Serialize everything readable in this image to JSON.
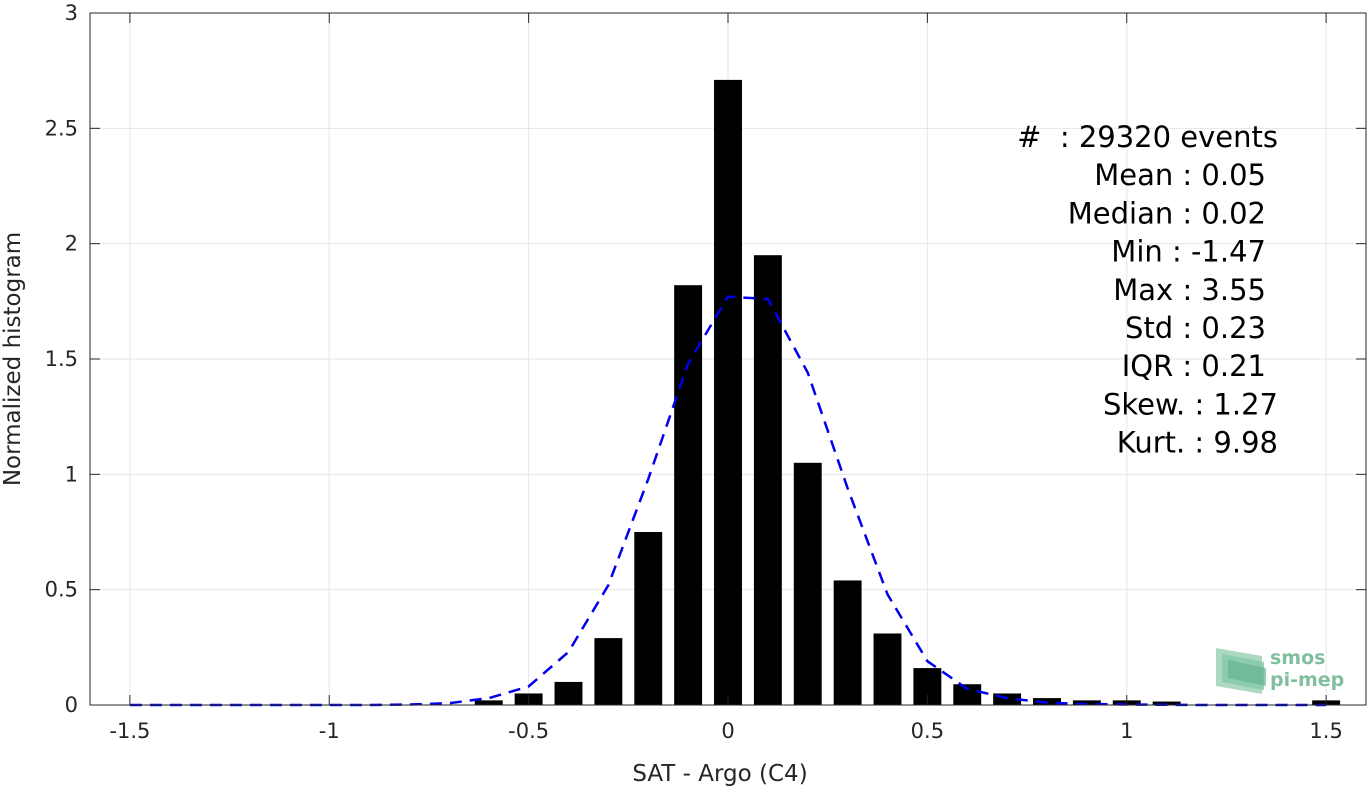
{
  "chart_data": {
    "type": "bar",
    "xlabel": "SAT - Argo (C4)",
    "ylabel": "Normalized histogram",
    "xlim": [
      -1.6,
      1.6
    ],
    "ylim": [
      0,
      3
    ],
    "x_ticks": [
      "-1.5",
      "-1",
      "-0.5",
      "0",
      "0.5",
      "1",
      "1.5"
    ],
    "x_tick_values": [
      -1.5,
      -1,
      -0.5,
      0,
      0.5,
      1,
      1.5
    ],
    "y_ticks": [
      "0",
      "0.5",
      "1",
      "1.5",
      "2",
      "2.5",
      "3"
    ],
    "y_tick_values": [
      0,
      0.5,
      1,
      1.5,
      2,
      2.5,
      3
    ],
    "grid": true,
    "bar_width": 0.07,
    "bars": {
      "x": [
        -0.6,
        -0.5,
        -0.4,
        -0.3,
        -0.2,
        -0.1,
        0.0,
        0.1,
        0.2,
        0.3,
        0.4,
        0.5,
        0.6,
        0.7,
        0.8,
        0.9,
        1.0,
        1.1,
        1.5
      ],
      "values": [
        0.02,
        0.05,
        0.1,
        0.29,
        0.75,
        1.82,
        2.71,
        1.95,
        1.05,
        0.54,
        0.31,
        0.16,
        0.09,
        0.05,
        0.03,
        0.02,
        0.02,
        0.015,
        0.02
      ],
      "color": "#000000"
    },
    "fit_curve": {
      "style": "dashed",
      "color": "#0000ee",
      "x": [
        -1.5,
        -1.4,
        -1.3,
        -1.2,
        -1.1,
        -1.0,
        -0.9,
        -0.8,
        -0.7,
        -0.6,
        -0.5,
        -0.4,
        -0.3,
        -0.2,
        -0.1,
        0.0,
        0.1,
        0.2,
        0.3,
        0.4,
        0.5,
        0.6,
        0.7,
        0.8,
        0.9,
        1.0,
        1.1,
        1.2,
        1.3,
        1.4,
        1.5
      ],
      "y": [
        0,
        0,
        0,
        0,
        0,
        0,
        0,
        0.002,
        0.008,
        0.03,
        0.08,
        0.23,
        0.52,
        0.98,
        1.48,
        1.77,
        1.76,
        1.44,
        0.94,
        0.48,
        0.19,
        0.07,
        0.03,
        0.01,
        0.004,
        0.002,
        0.001,
        0,
        0,
        0,
        0
      ]
    },
    "stats": [
      {
        "label": "#  : 29320 events"
      },
      {
        "label": "Mean : 0.05"
      },
      {
        "label": "Median : 0.02"
      },
      {
        "label": "Min : -1.47"
      },
      {
        "label": "Max : 3.55"
      },
      {
        "label": "Std : 0.23"
      },
      {
        "label": "IQR : 0.21"
      },
      {
        "label": "Skew. : 1.27"
      },
      {
        "label": "Kurt. : 9.98"
      }
    ]
  },
  "logo": {
    "line1": "smos",
    "line2": "pi-mep",
    "color": "#7fbf9f"
  }
}
